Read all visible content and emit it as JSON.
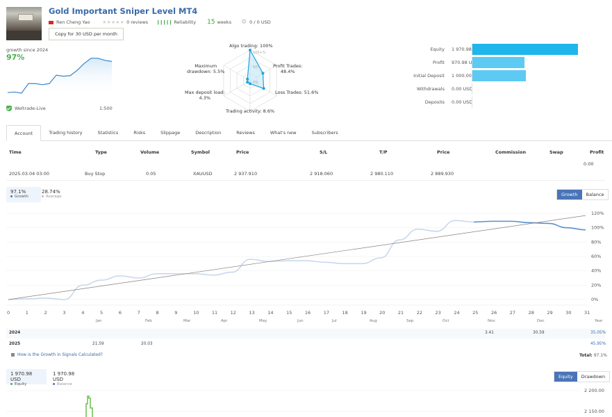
{
  "header": {
    "title": "Gold Important Sniper Level MT4",
    "author": "Ren Cheng Yao",
    "reviews": "0 reviews",
    "reliability_label": "Reliability",
    "weeks_num": "15",
    "weeks_label": "weeks",
    "subscribers_funds": "0 / 0 USD",
    "copy_button": "Copy for 30 USD per month"
  },
  "summary": {
    "growth_label": "growth since 2024",
    "growth_value": "97%",
    "broker": "Weltrade-Live",
    "leverage": "1:500",
    "mini_chart_values": [
      5,
      6,
      4,
      22,
      22,
      20,
      22,
      38,
      36,
      37,
      47,
      60,
      70,
      70,
      66,
      64
    ]
  },
  "radar": {
    "labels": {
      "algo": "Algo trading: 100%",
      "profit_trades": "Profit Trades:\n48.4%",
      "loss_trades": "Loss Trades: 51.6%",
      "trading_activity": "Trading activity: 8.6%",
      "max_deposit_load": "Max deposit load:\n4.3%",
      "max_drawdown": "Maximum\ndrawdown: 5.5%"
    },
    "values": [
      100,
      48.4,
      51.6,
      8.6,
      4.3,
      5.5
    ],
    "scale_labels": [
      "100+%",
      "50%",
      "0%"
    ]
  },
  "balance": {
    "rows": [
      {
        "label": "Equity",
        "value": "1 970.98 USD",
        "amount": 1970.98,
        "color": "#1fb6ec"
      },
      {
        "label": "Profit",
        "value": "970.98 USD",
        "amount": 970.98,
        "color": "#5ccaf3"
      },
      {
        "label": "Initial Deposit",
        "value": "1 000.00 USD",
        "amount": 1000.0,
        "color": "#5ccaf3"
      },
      {
        "label": "Withdrawals",
        "value": "0.00 USD",
        "amount": 0,
        "color": "#5ccaf3"
      },
      {
        "label": "Deposits",
        "value": "0.00 USD",
        "amount": 0,
        "color": "#5ccaf3"
      }
    ]
  },
  "tabs": [
    "Account",
    "Trading history",
    "Statistics",
    "Risks",
    "Slippage",
    "Description",
    "Reviews",
    "What's new",
    "Subscribers"
  ],
  "orders": {
    "headers": [
      "Time",
      "Type",
      "Volume",
      "Symbol",
      "Price",
      "S/L",
      "T/P",
      "Price",
      "Commission",
      "Swap",
      "Profit"
    ],
    "total_profit": "0.00",
    "rows": [
      [
        "2025.03.04 03:00",
        "Buy Stop",
        "0.05",
        "XAUUSD",
        "2 937.910",
        "2 918.060",
        "2 980.110",
        "2 889.930",
        "",
        "",
        ""
      ]
    ]
  },
  "growth": {
    "growth_value": "97.1%",
    "growth_label": "Growth",
    "average_value": "28.74%",
    "average_label": "Average",
    "toggle": [
      "Growth",
      "Balance"
    ],
    "calc_link": "How is the Growth in Signals Calculated?",
    "total_label": "Total:",
    "total_value": "97.1%"
  },
  "chart_data": {
    "type": "line",
    "x": [
      0,
      1,
      2,
      3,
      4,
      5,
      6,
      7,
      8,
      9,
      10,
      11,
      12,
      13,
      14,
      15,
      16,
      17,
      18,
      19,
      20,
      21,
      22,
      23,
      24,
      25,
      26,
      27,
      28,
      29,
      30,
      31
    ],
    "y_ticks": [
      "120%",
      "100%",
      "80%",
      "60%",
      "40%",
      "20%",
      "0%"
    ],
    "ylim": [
      0,
      120
    ],
    "series": [
      {
        "name": "Growth (history)",
        "values": [
          0,
          1,
          2,
          0,
          20,
          27,
          33,
          30,
          36,
          36,
          36,
          34,
          38,
          56,
          53,
          54,
          54,
          52,
          50,
          50,
          58,
          83,
          98,
          95,
          110,
          108,
          108,
          108,
          108,
          108,
          108,
          108
        ]
      },
      {
        "name": "Growth (current)",
        "start_index": 25,
        "values": [
          108,
          109,
          109,
          107,
          106,
          100,
          97
        ]
      },
      {
        "name": "Trend",
        "values": [
          0,
          117
        ]
      }
    ],
    "months": [
      "Jan",
      "Feb",
      "Mar",
      "Apr",
      "May",
      "Jun",
      "Jul",
      "Aug",
      "Sep",
      "Oct",
      "Nov",
      "Dec",
      "Year"
    ]
  },
  "year_table": [
    {
      "year": "2024",
      "values": {
        "Nov": "3.41",
        "Dec": "30.59"
      },
      "total": "35.05%"
    },
    {
      "year": "2025",
      "values": {
        "Jan": "21.59",
        "Feb": "20.03"
      },
      "total": "45.95%"
    }
  ],
  "equity": {
    "equity_value": "1 970.98 USD",
    "equity_label": "Equity",
    "balance_value": "1 970.98 USD",
    "balance_label": "Balance",
    "toggle": [
      "Equity",
      "Drawdown"
    ],
    "y_ticks": [
      "2 200.00",
      "2 150.00"
    ]
  }
}
